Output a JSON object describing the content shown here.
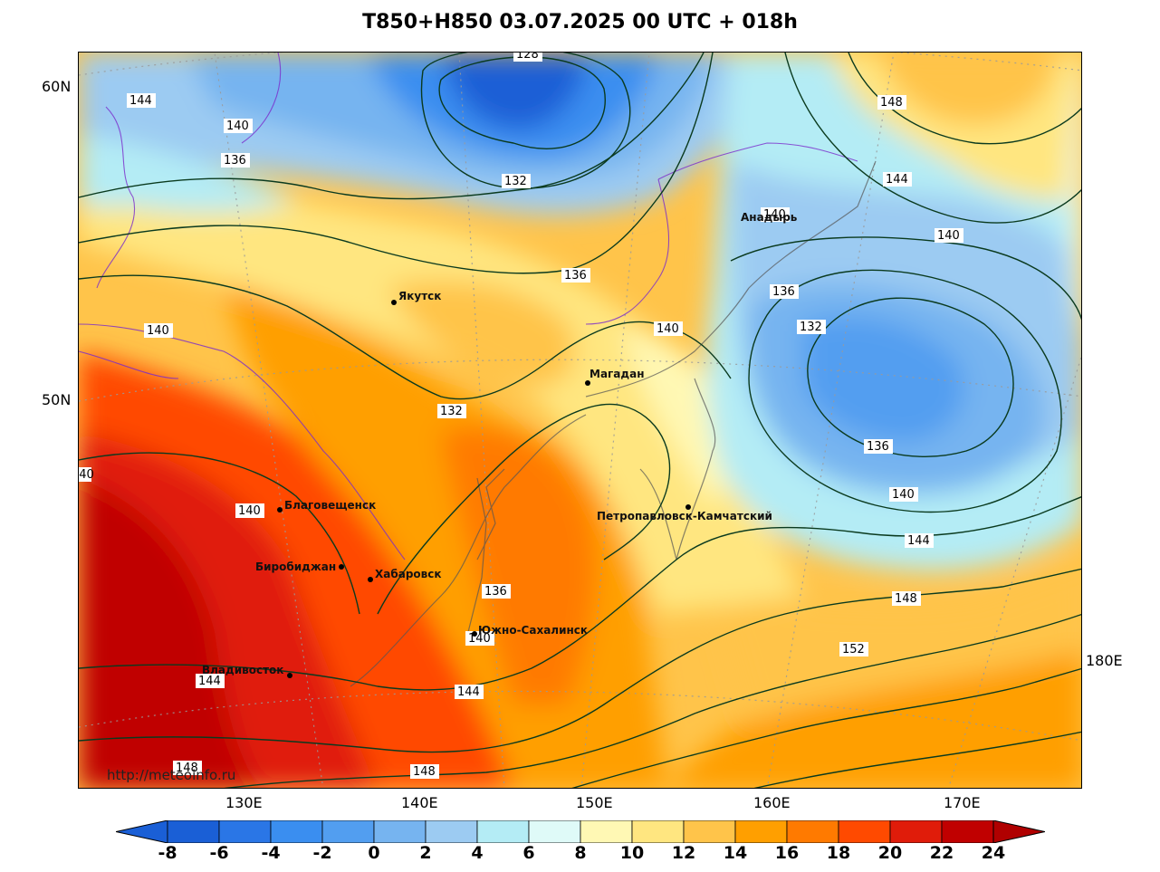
{
  "title": "T850+H850 03.07.2025 00 UTC + 018h",
  "latitude_labels": [
    "60N",
    "50N"
  ],
  "longitude_labels": [
    "130E",
    "140E",
    "150E",
    "160E",
    "170E",
    "180E"
  ],
  "watermark": "http://meteoinfo.ru",
  "colorbar": {
    "ticks": [
      "-8",
      "-6",
      "-4",
      "-2",
      "0",
      "2",
      "4",
      "6",
      "8",
      "10",
      "12",
      "14",
      "16",
      "18",
      "20",
      "22",
      "24"
    ],
    "colors": [
      "#1a5fd6",
      "#2a76e6",
      "#3a8ef0",
      "#529ef0",
      "#76b4f0",
      "#9ccbf2",
      "#b4ecf5",
      "#dffaf8",
      "#fff8b4",
      "#ffe680",
      "#ffc44a",
      "#ff9f00",
      "#ff7a00",
      "#ff4a00",
      "#e01c0a",
      "#c00000"
    ],
    "low_color": "#1a5fd6",
    "high_color": "#b00000"
  },
  "cities": [
    {
      "name": "Якутск"
    },
    {
      "name": "Магадан"
    },
    {
      "name": "Анадырь"
    },
    {
      "name": "Петропавловск-Камчатский"
    },
    {
      "name": "Благовещенск"
    },
    {
      "name": "Биробиджан"
    },
    {
      "name": "Хабаровск"
    },
    {
      "name": "Южно-Сахалинск"
    },
    {
      "name": "Владивосток"
    }
  ],
  "contour_labels": [
    "128",
    "132",
    "136",
    "140",
    "144",
    "148",
    "152"
  ]
}
